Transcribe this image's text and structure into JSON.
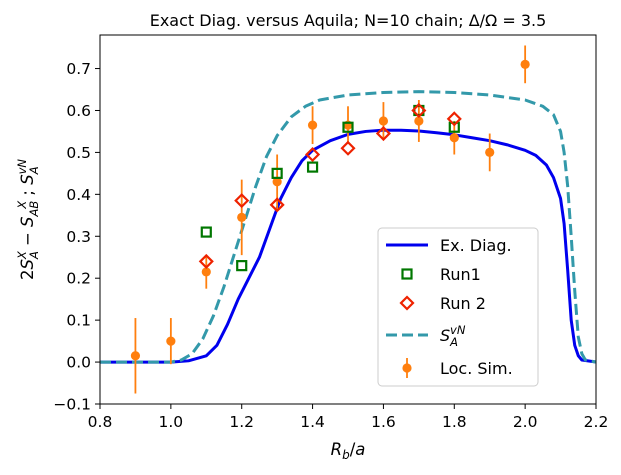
{
  "chart_data": {
    "type": "line",
    "title": "Exact Diag. versus Aquila; N=10 chain; Δ/Ω = 3.5",
    "xlabel": "R_b/a",
    "ylabel": "2S_A^X − S_AB^X ; S_A^vN",
    "xlim": [
      0.8,
      2.2
    ],
    "ylim": [
      -0.1,
      0.78
    ],
    "xticks": [
      0.8,
      1.0,
      1.2,
      1.4,
      1.6,
      1.8,
      2.0,
      2.2
    ],
    "xtick_labels": [
      "0.8",
      "1.0",
      "1.2",
      "1.4",
      "1.6",
      "1.8",
      "2.0",
      "2.2"
    ],
    "yticks": [
      -0.1,
      0.0,
      0.1,
      0.2,
      0.3,
      0.4,
      0.5,
      0.6,
      0.7
    ],
    "ytick_labels": [
      "−0.1",
      "0.0",
      "0.1",
      "0.2",
      "0.3",
      "0.4",
      "0.5",
      "0.6",
      "0.7"
    ],
    "grid": false,
    "legend_position": "lower-right",
    "series": [
      {
        "name": "Ex. Diag.",
        "kind": "line",
        "color": "#0000ee",
        "x": [
          0.8,
          1.0,
          1.05,
          1.1,
          1.13,
          1.16,
          1.19,
          1.22,
          1.25,
          1.28,
          1.31,
          1.34,
          1.37,
          1.4,
          1.45,
          1.5,
          1.55,
          1.6,
          1.65,
          1.7,
          1.75,
          1.8,
          1.85,
          1.9,
          1.95,
          2.0,
          2.03,
          2.06,
          2.08,
          2.1,
          2.11,
          2.12,
          2.13,
          2.14,
          2.15,
          2.16,
          2.2
        ],
        "y": [
          0.0,
          0.0,
          0.003,
          0.015,
          0.04,
          0.09,
          0.15,
          0.2,
          0.25,
          0.32,
          0.39,
          0.44,
          0.48,
          0.505,
          0.528,
          0.543,
          0.55,
          0.553,
          0.553,
          0.551,
          0.547,
          0.542,
          0.535,
          0.528,
          0.518,
          0.505,
          0.493,
          0.47,
          0.44,
          0.39,
          0.33,
          0.22,
          0.1,
          0.04,
          0.015,
          0.005,
          0.0
        ]
      },
      {
        "name": "S_A^vN",
        "kind": "dashed-line",
        "color": "#3399aa",
        "x": [
          0.8,
          1.0,
          1.03,
          1.06,
          1.09,
          1.12,
          1.15,
          1.18,
          1.21,
          1.24,
          1.27,
          1.3,
          1.34,
          1.38,
          1.42,
          1.5,
          1.6,
          1.7,
          1.8,
          1.9,
          2.0,
          2.05,
          2.08,
          2.1,
          2.11,
          2.12,
          2.13,
          2.14,
          2.15,
          2.16,
          2.17,
          2.2
        ],
        "y": [
          0.0,
          0.0,
          0.005,
          0.02,
          0.055,
          0.11,
          0.18,
          0.26,
          0.34,
          0.42,
          0.49,
          0.54,
          0.585,
          0.61,
          0.625,
          0.637,
          0.643,
          0.645,
          0.643,
          0.637,
          0.625,
          0.61,
          0.59,
          0.55,
          0.5,
          0.42,
          0.3,
          0.17,
          0.06,
          0.02,
          0.005,
          0.0
        ]
      },
      {
        "name": "Run1",
        "kind": "square-markers",
        "color": "#007700",
        "x": [
          1.1,
          1.2,
          1.3,
          1.4,
          1.5,
          1.7,
          1.8
        ],
        "y": [
          0.31,
          0.23,
          0.45,
          0.465,
          0.56,
          0.6,
          0.56
        ]
      },
      {
        "name": "Run 2",
        "kind": "diamond-markers",
        "color": "#ee2200",
        "x": [
          1.1,
          1.2,
          1.3,
          1.4,
          1.5,
          1.6,
          1.7,
          1.8
        ],
        "y": [
          0.24,
          0.385,
          0.375,
          0.495,
          0.51,
          0.545,
          0.6,
          0.58
        ]
      },
      {
        "name": "Loc. Sim.",
        "kind": "errorbar-markers",
        "color": "#ff7f0e",
        "x": [
          0.9,
          1.0,
          1.1,
          1.2,
          1.3,
          1.4,
          1.5,
          1.6,
          1.7,
          1.8,
          1.9,
          2.0
        ],
        "y": [
          0.015,
          0.05,
          0.215,
          0.345,
          0.43,
          0.565,
          0.565,
          0.575,
          0.575,
          0.535,
          0.5,
          0.71
        ],
        "err": [
          0.09,
          0.055,
          0.04,
          0.09,
          0.065,
          0.045,
          0.045,
          0.045,
          0.05,
          0.04,
          0.045,
          0.045
        ]
      }
    ],
    "legend": [
      {
        "label": "Ex. Diag.",
        "kind": "line",
        "color": "#0000ee"
      },
      {
        "label": "Run1",
        "kind": "square",
        "color": "#007700"
      },
      {
        "label": "Run 2",
        "kind": "diamond",
        "color": "#ee2200"
      },
      {
        "label": "S_A^vN",
        "kind": "dashed",
        "color": "#3399aa"
      },
      {
        "label": "Loc. Sim.",
        "kind": "errorbar",
        "color": "#ff7f0e"
      }
    ]
  }
}
